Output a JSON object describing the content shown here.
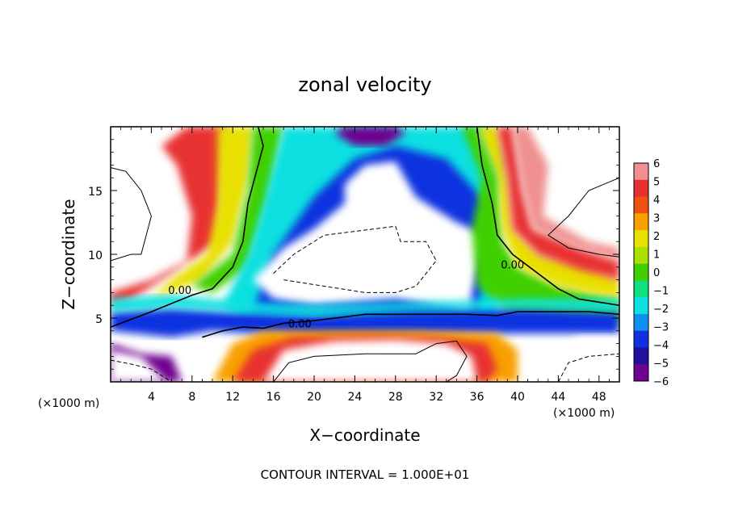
{
  "chart_data": {
    "type": "heatmap",
    "title": "zonal velocity",
    "xlabel": "X−coordinate",
    "ylabel": "Z−coordinate",
    "x_unit_left": "(×1000 m)",
    "x_unit_right": "(×1000 m)",
    "xlim": [
      0,
      50
    ],
    "ylim": [
      0,
      20
    ],
    "x_ticks": [
      4,
      8,
      12,
      16,
      20,
      24,
      28,
      32,
      36,
      40,
      44,
      48
    ],
    "x_tick_labels": [
      "4",
      "8",
      "12",
      "16",
      "20",
      "24",
      "28",
      "32",
      "36",
      "40",
      "44",
      "48"
    ],
    "y_ticks": [
      5,
      10,
      15
    ],
    "y_tick_labels": [
      "5",
      "10",
      "15"
    ],
    "colorbar": {
      "min": -6,
      "max": 6,
      "labels": [
        "6",
        "5",
        "4",
        "3",
        "2",
        "1",
        "0",
        "−1",
        "−2",
        "−3",
        "−4",
        "−5",
        "−6"
      ],
      "colors": [
        "#f09090",
        "#e83030",
        "#f05010",
        "#f8a000",
        "#e8e000",
        "#a8e000",
        "#40d000",
        "#10e080",
        "#10e0e0",
        "#1090f0",
        "#1030e0",
        "#2010a0",
        "#700090"
      ]
    },
    "contour_labels": [
      {
        "text": "0.00",
        "x": 6.8,
        "z": 7.2
      },
      {
        "text": "0.00",
        "x": 18.6,
        "z": 4.6
      },
      {
        "text": "0.00",
        "x": 39.5,
        "z": 9.2
      }
    ],
    "shaded_regions": [
      {
        "name": "west-red-band",
        "value": 5,
        "points": [
          [
            0,
            7
          ],
          [
            4,
            8
          ],
          [
            7.5,
            9.5
          ],
          [
            8,
            13
          ],
          [
            6.5,
            17
          ],
          [
            5,
            18.5
          ],
          [
            7.5,
            20
          ],
          [
            11.5,
            20
          ],
          [
            11,
            16
          ],
          [
            10.5,
            11
          ],
          [
            6,
            8.5
          ],
          [
            2,
            6.5
          ],
          [
            0,
            6
          ]
        ]
      },
      {
        "name": "west-yellow-band",
        "value": 2,
        "points": [
          [
            6,
            8
          ],
          [
            9.5,
            10
          ],
          [
            10.5,
            14
          ],
          [
            10.5,
            20
          ],
          [
            14,
            20
          ],
          [
            13.5,
            16
          ],
          [
            12,
            11
          ],
          [
            9,
            8
          ],
          [
            4,
            6.5
          ]
        ]
      },
      {
        "name": "west-green-band",
        "value": 0,
        "points": [
          [
            8,
            7.5
          ],
          [
            12,
            10
          ],
          [
            13.5,
            15
          ],
          [
            14,
            20
          ],
          [
            17,
            20
          ],
          [
            15.5,
            14
          ],
          [
            13.5,
            9
          ],
          [
            10,
            7
          ]
        ]
      },
      {
        "name": "central-cyan-region",
        "value": -2,
        "points": [
          [
            11,
            6
          ],
          [
            13.5,
            10
          ],
          [
            15,
            14
          ],
          [
            17,
            20
          ],
          [
            37,
            20
          ],
          [
            38.5,
            17
          ],
          [
            37.5,
            13
          ],
          [
            38,
            8
          ],
          [
            38,
            5
          ],
          [
            24,
            4.8
          ],
          [
            13,
            5
          ]
        ]
      },
      {
        "name": "central-blue-arch",
        "value": -4,
        "points": [
          [
            14,
            5.5
          ],
          [
            16,
            10
          ],
          [
            20,
            14.5
          ],
          [
            24,
            17.5
          ],
          [
            28,
            18.5
          ],
          [
            33,
            17.5
          ],
          [
            37,
            14
          ],
          [
            37,
            9
          ],
          [
            36,
            5.5
          ],
          [
            28,
            5.2
          ],
          [
            19,
            5.5
          ]
        ]
      },
      {
        "name": "central-white-core",
        "value": null,
        "points": [
          [
            14,
            8
          ],
          [
            17,
            10.5
          ],
          [
            20,
            12
          ],
          [
            23,
            14
          ],
          [
            23,
            15.5
          ],
          [
            25,
            17
          ],
          [
            28,
            17.3
          ],
          [
            30,
            14.5
          ],
          [
            34,
            12.5
          ],
          [
            37,
            11.5
          ],
          [
            35.5,
            7
          ],
          [
            35.5,
            5.5
          ],
          [
            28,
            6.5
          ],
          [
            20,
            6
          ],
          [
            16,
            6.5
          ]
        ]
      },
      {
        "name": "top-purple-patch",
        "value": -6,
        "points": [
          [
            22,
            19.5
          ],
          [
            24,
            18.5
          ],
          [
            27,
            18.5
          ],
          [
            29,
            19.5
          ],
          [
            28,
            20
          ],
          [
            23,
            20
          ]
        ]
      },
      {
        "name": "east-green-band",
        "value": 0,
        "points": [
          [
            36,
            20
          ],
          [
            38,
            16
          ],
          [
            38.5,
            11
          ],
          [
            40,
            9
          ],
          [
            44,
            7.5
          ],
          [
            50,
            6.5
          ],
          [
            50,
            4.5
          ],
          [
            44,
            5
          ],
          [
            39,
            5.5
          ],
          [
            36,
            7.5
          ],
          [
            35.5,
            12
          ],
          [
            36.5,
            16
          ],
          [
            34.5,
            20
          ]
        ]
      },
      {
        "name": "east-yellow-band",
        "value": 2,
        "points": [
          [
            38,
            20
          ],
          [
            39,
            16
          ],
          [
            39.5,
            12
          ],
          [
            42,
            10
          ],
          [
            47,
            9
          ],
          [
            50,
            8
          ],
          [
            50,
            6.5
          ],
          [
            44,
            7.5
          ],
          [
            40,
            9
          ],
          [
            38.5,
            12
          ],
          [
            38,
            16
          ],
          [
            36,
            20
          ]
        ]
      },
      {
        "name": "east-red-band",
        "value": 5,
        "points": [
          [
            39.5,
            20
          ],
          [
            40.5,
            15
          ],
          [
            41.5,
            12
          ],
          [
            46,
            10.5
          ],
          [
            50,
            9.5
          ],
          [
            50,
            8
          ],
          [
            46,
            8.8
          ],
          [
            42,
            10
          ],
          [
            39.5,
            12
          ],
          [
            39,
            16
          ],
          [
            38,
            20
          ]
        ]
      },
      {
        "name": "east-pink-fringe",
        "value": 6,
        "points": [
          [
            41,
            20
          ],
          [
            43,
            17
          ],
          [
            42.5,
            13
          ],
          [
            47,
            11
          ],
          [
            50,
            10.5
          ],
          [
            50,
            9.5
          ],
          [
            46,
            10.5
          ],
          [
            41.5,
            12
          ],
          [
            40.5,
            15
          ],
          [
            39.5,
            20
          ]
        ]
      },
      {
        "name": "bottom-blue-band",
        "value": -4,
        "points": [
          [
            0,
            4
          ],
          [
            6,
            3.5
          ],
          [
            10,
            4
          ],
          [
            14,
            3.8
          ],
          [
            20,
            3.6
          ],
          [
            30,
            3.7
          ],
          [
            40,
            3.8
          ],
          [
            50,
            3.8
          ],
          [
            50,
            5.5
          ],
          [
            40,
            5.8
          ],
          [
            30,
            5.6
          ],
          [
            20,
            5.2
          ],
          [
            12,
            5.5
          ],
          [
            6,
            5.8
          ],
          [
            0,
            5.5
          ]
        ]
      },
      {
        "name": "bottom-cyan-band",
        "value": -2,
        "points": [
          [
            0,
            5.5
          ],
          [
            6,
            5.8
          ],
          [
            12,
            5.5
          ],
          [
            20,
            5.2
          ],
          [
            30,
            5.6
          ],
          [
            40,
            5.8
          ],
          [
            50,
            5.5
          ],
          [
            50,
            6.5
          ],
          [
            40,
            6.5
          ],
          [
            30,
            6.2
          ],
          [
            20,
            6
          ],
          [
            12,
            6.3
          ],
          [
            6,
            6.8
          ],
          [
            0,
            6.5
          ]
        ]
      },
      {
        "name": "bottom-purple-left",
        "value": -6,
        "points": [
          [
            0,
            3
          ],
          [
            3,
            2.2
          ],
          [
            6,
            2
          ],
          [
            7,
            0
          ],
          [
            0,
            0
          ]
        ]
      },
      {
        "name": "bottom-orange-band",
        "value": 3,
        "points": [
          [
            10,
            0
          ],
          [
            12,
            3
          ],
          [
            15,
            4
          ],
          [
            22,
            4
          ],
          [
            30,
            4
          ],
          [
            38,
            3.8
          ],
          [
            40,
            2.5
          ],
          [
            40,
            0
          ],
          [
            30,
            0
          ],
          [
            20,
            0
          ]
        ]
      },
      {
        "name": "bottom-red-band",
        "value": 5,
        "points": [
          [
            12,
            0
          ],
          [
            14,
            2.5
          ],
          [
            18,
            3.5
          ],
          [
            25,
            3.6
          ],
          [
            32,
            3.5
          ],
          [
            37,
            3
          ],
          [
            38,
            1
          ],
          [
            37,
            0
          ]
        ]
      },
      {
        "name": "bottom-white-patch",
        "value": null,
        "points": [
          [
            15,
            0
          ],
          [
            17,
            2.5
          ],
          [
            22,
            3.2
          ],
          [
            28,
            3.3
          ],
          [
            33,
            3
          ],
          [
            35.5,
            2
          ],
          [
            36,
            0
          ]
        ]
      },
      {
        "name": "bottom-right-white",
        "value": null,
        "points": [
          [
            43,
            0
          ],
          [
            44,
            2.5
          ],
          [
            46,
            3.5
          ],
          [
            50,
            3.5
          ],
          [
            50,
            0
          ]
        ]
      },
      {
        "name": "bottom-left-white",
        "value": null,
        "points": [
          [
            0,
            0
          ],
          [
            0,
            2.5
          ],
          [
            3,
            2
          ],
          [
            5.5,
            0
          ]
        ]
      }
    ],
    "contour_lines": [
      {
        "name": "zero-contour-west",
        "style": "solid",
        "points": [
          [
            0,
            4.3
          ],
          [
            4,
            5.5
          ],
          [
            8,
            6.8
          ],
          [
            10,
            7.3
          ],
          [
            12,
            9
          ],
          [
            13,
            11
          ],
          [
            13.5,
            14
          ],
          [
            14.5,
            17
          ],
          [
            15,
            18.5
          ],
          [
            14.5,
            20
          ]
        ]
      },
      {
        "name": "zero-contour-center",
        "style": "solid",
        "points": [
          [
            9,
            3.5
          ],
          [
            11,
            4
          ],
          [
            13,
            4.3
          ],
          [
            15,
            4.2
          ],
          [
            17,
            4.6
          ],
          [
            20,
            4.8
          ],
          [
            25,
            5.3
          ],
          [
            30,
            5.3
          ],
          [
            35,
            5.3
          ],
          [
            38,
            5.2
          ],
          [
            40,
            5.5
          ],
          [
            44,
            5.5
          ],
          [
            47,
            5.5
          ],
          [
            50,
            5.3
          ]
        ]
      },
      {
        "name": "zero-contour-east",
        "style": "solid",
        "points": [
          [
            36,
            20
          ],
          [
            36.5,
            17
          ],
          [
            37.5,
            14
          ],
          [
            38,
            11.5
          ],
          [
            39.5,
            10
          ],
          [
            42,
            8.5
          ],
          [
            44,
            7.3
          ],
          [
            46,
            6.5
          ],
          [
            50,
            6
          ]
        ]
      },
      {
        "name": "contour-west-edge",
        "style": "solid",
        "points": [
          [
            0,
            16.8
          ],
          [
            1.5,
            16.5
          ],
          [
            3,
            15
          ],
          [
            4,
            13
          ],
          [
            3.5,
            11.5
          ],
          [
            3,
            10
          ],
          [
            2,
            10
          ],
          [
            0,
            9.5
          ]
        ]
      },
      {
        "name": "contour-east-edge",
        "style": "solid",
        "points": [
          [
            50,
            16
          ],
          [
            47,
            15
          ],
          [
            45,
            13
          ],
          [
            43,
            11.5
          ],
          [
            45,
            10.5
          ],
          [
            48,
            10
          ],
          [
            50,
            9.8
          ]
        ]
      },
      {
        "name": "dashed-core",
        "style": "dashed",
        "points": [
          [
            16,
            8.5
          ],
          [
            18,
            10
          ],
          [
            21,
            11.5
          ],
          [
            24,
            11.8
          ],
          [
            28,
            12.2
          ],
          [
            28.5,
            11
          ],
          [
            31,
            11
          ],
          [
            32,
            9.5
          ],
          [
            30,
            7.5
          ],
          [
            28,
            7
          ],
          [
            25,
            7
          ],
          [
            21,
            7.5
          ],
          [
            17,
            8
          ]
        ]
      },
      {
        "name": "dashed-bottom-left",
        "style": "dashed",
        "points": [
          [
            0,
            1.7
          ],
          [
            2,
            1.4
          ],
          [
            4,
            1
          ],
          [
            6,
            0
          ]
        ]
      },
      {
        "name": "dashed-bottom-right",
        "style": "dashed",
        "points": [
          [
            44,
            0
          ],
          [
            45,
            1.5
          ],
          [
            47,
            2
          ],
          [
            50,
            2.2
          ]
        ]
      },
      {
        "name": "bottom-solid-contour",
        "style": "solid",
        "points": [
          [
            16,
            0
          ],
          [
            17.5,
            1.5
          ],
          [
            20,
            2
          ],
          [
            25,
            2.2
          ],
          [
            30,
            2.2
          ],
          [
            32,
            3
          ],
          [
            34,
            3.2
          ],
          [
            35,
            2
          ],
          [
            34,
            0.5
          ],
          [
            33,
            0
          ]
        ]
      }
    ]
  },
  "footer_note": "CONTOUR INTERVAL = 1.000E+01"
}
